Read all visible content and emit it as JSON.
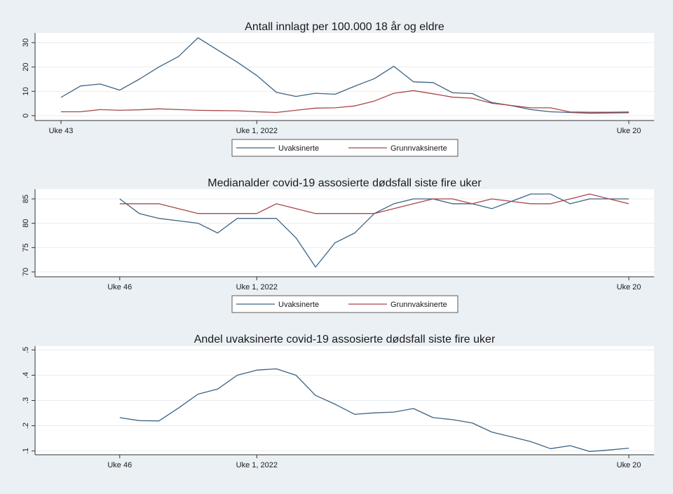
{
  "colors": {
    "background": "#ebf0f5",
    "plot_area": "#ffffff",
    "grid": "#e8ecef",
    "uvaksinerte": "#3c6383",
    "grunnvaksinerte": "#a94749"
  },
  "chart_data": [
    {
      "type": "line",
      "title": "Antall innlagt per 100.000 18 år og eldre",
      "x_ticks": [
        {
          "label": "Uke 43",
          "x": 0
        },
        {
          "label": "Uke 1, 2022",
          "x": 10
        },
        {
          "label": "Uke 20",
          "x": 29
        }
      ],
      "xlim": [
        0,
        29
      ],
      "ylim": [
        -2,
        34
      ],
      "y_ticks": [
        0,
        10,
        20,
        30
      ],
      "grid": true,
      "legend": "below",
      "series": [
        {
          "name": "Uvaksinerte",
          "x": [
            0,
            1,
            2,
            3,
            4,
            5,
            6,
            7,
            8,
            9,
            10,
            11,
            12,
            13,
            14,
            15,
            16,
            17,
            18,
            19,
            20,
            21,
            22,
            23,
            24,
            25,
            26,
            27,
            28,
            29
          ],
          "values": [
            7.5,
            12.2,
            13,
            10.5,
            15,
            20,
            24.3,
            32,
            27,
            22,
            16.5,
            9.6,
            7.9,
            9.2,
            8.8,
            12.1,
            15.2,
            20.3,
            13.9,
            13.6,
            9.4,
            9.1,
            5.4,
            4.1,
            2.5,
            1.6,
            1.3,
            1,
            1.1,
            1.2
          ]
        },
        {
          "name": "Grunnvaksinerte",
          "x": [
            0,
            1,
            2,
            3,
            4,
            5,
            6,
            7,
            8,
            9,
            10,
            11,
            12,
            13,
            14,
            15,
            16,
            17,
            18,
            19,
            20,
            21,
            22,
            23,
            24,
            25,
            26,
            27,
            28,
            29
          ],
          "values": [
            1.6,
            1.6,
            2.5,
            2.2,
            2.4,
            2.8,
            2.5,
            2.2,
            2.1,
            2,
            1.6,
            1.3,
            2.2,
            3.1,
            3.2,
            4,
            6,
            9.2,
            10.3,
            9,
            7.6,
            7.2,
            5.1,
            4.2,
            3.2,
            3.2,
            1.5,
            1.4,
            1.4,
            1.5
          ]
        }
      ]
    },
    {
      "type": "line",
      "title": "Medianalder covid-19 assosierte dødsfall siste fire uker",
      "x_ticks": [
        {
          "label": "Uke 46",
          "x": 3
        },
        {
          "label": "Uke 1, 2022",
          "x": 10
        },
        {
          "label": "Uke 20",
          "x": 29
        }
      ],
      "xlim": [
        0,
        29
      ],
      "ylim": [
        69,
        87
      ],
      "y_ticks": [
        70,
        75,
        80,
        85
      ],
      "grid": true,
      "legend": "below",
      "series": [
        {
          "name": "Uvaksinerte",
          "x": [
            3,
            4,
            5,
            6,
            7,
            8,
            9,
            10,
            11,
            12,
            13,
            14,
            15,
            16,
            17,
            18,
            19,
            20,
            21,
            22,
            23,
            24,
            25,
            26,
            27,
            28,
            29
          ],
          "values": [
            85,
            82,
            81,
            80.5,
            80,
            78,
            81,
            81,
            81,
            77,
            71,
            76,
            78,
            82,
            84,
            85,
            85,
            84,
            84,
            83,
            84.5,
            86,
            86,
            84,
            85,
            85,
            85
          ]
        },
        {
          "name": "Grunnvaksinerte",
          "x": [
            3,
            4,
            5,
            6,
            7,
            8,
            9,
            10,
            11,
            12,
            13,
            14,
            15,
            16,
            17,
            18,
            19,
            20,
            21,
            22,
            23,
            24,
            25,
            26,
            27,
            28,
            29
          ],
          "values": [
            84,
            84,
            84,
            83,
            82,
            82,
            82,
            82,
            84,
            83,
            82,
            82,
            82,
            82,
            83,
            84,
            85,
            85,
            84,
            85,
            84.5,
            84,
            84,
            85,
            86,
            85,
            84
          ]
        }
      ]
    },
    {
      "type": "line",
      "title": "Andel uvaksinerte covid-19 assosierte dødsfall siste fire uker",
      "x_ticks": [
        {
          "label": "Uke 46",
          "x": 3
        },
        {
          "label": "Uke 1, 2022",
          "x": 10
        },
        {
          "label": "Uke 20",
          "x": 29
        }
      ],
      "xlim": [
        0,
        29
      ],
      "ylim": [
        0.085,
        0.515
      ],
      "y_ticks": [
        ".1",
        ".2",
        ".3",
        ".4",
        ".5"
      ],
      "y_tick_values": [
        0.1,
        0.2,
        0.3,
        0.4,
        0.5
      ],
      "grid": true,
      "legend": "none",
      "series": [
        {
          "x": [
            3,
            4,
            5,
            6,
            7,
            8,
            9,
            10,
            11,
            12,
            13,
            14,
            15,
            16,
            17,
            18,
            19,
            20,
            21,
            22,
            23,
            24,
            25,
            26,
            27,
            28,
            29
          ],
          "values": [
            0.232,
            0.22,
            0.219,
            0.27,
            0.325,
            0.345,
            0.4,
            0.42,
            0.425,
            0.4,
            0.32,
            0.285,
            0.245,
            0.251,
            0.254,
            0.268,
            0.232,
            0.224,
            0.211,
            0.175,
            0.156,
            0.137,
            0.109,
            0.121,
            0.098,
            0.104,
            0.111
          ]
        }
      ]
    }
  ]
}
